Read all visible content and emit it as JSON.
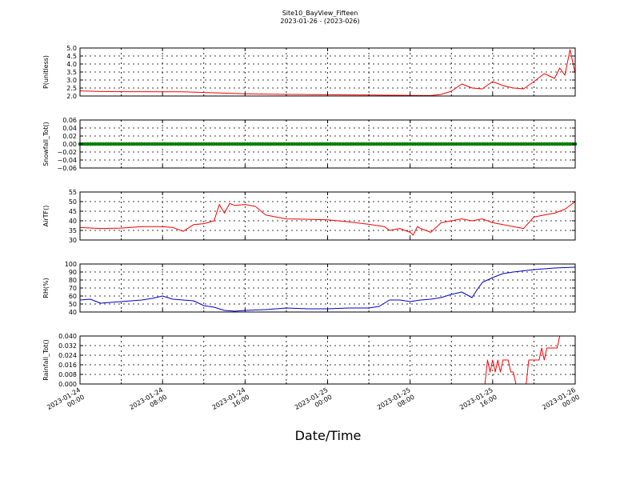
{
  "title": "Site10_BayView_Fifteen",
  "subtitle": "2023-01-26 - (2023-026)",
  "xlabel": "Date/Time",
  "x_tick_labels": [
    [
      "2023-01-24",
      "00:00"
    ],
    [
      "2023-01-24",
      "08:00"
    ],
    [
      "2023-01-24",
      "16:00"
    ],
    [
      "2023-01-25",
      "00:00"
    ],
    [
      "2023-01-25",
      "08:00"
    ],
    [
      "2023-01-25",
      "16:00"
    ],
    [
      "2023-01-26",
      "00:00"
    ]
  ],
  "chart_data": [
    {
      "type": "line",
      "ylabel": "P(unitless)",
      "color": "#ff0000",
      "ylim": [
        2.0,
        5.0
      ],
      "yticks": [
        2.0,
        2.5,
        3.0,
        3.5,
        4.0,
        4.5,
        5.0
      ],
      "ytick_labels": [
        "2.0",
        "2.5",
        "3.0",
        "3.5",
        "4.0",
        "4.5",
        "5.0"
      ],
      "x_hours": [
        0,
        2,
        4,
        6,
        8,
        10,
        12,
        14,
        16,
        18,
        20,
        22,
        24,
        26,
        28,
        30,
        32,
        34,
        35,
        36,
        37,
        38,
        39,
        40,
        41,
        42,
        43,
        44,
        45,
        46,
        46.5,
        47,
        47.5,
        48
      ],
      "values": [
        2.32,
        2.28,
        2.27,
        2.27,
        2.26,
        2.26,
        2.22,
        2.18,
        2.14,
        2.12,
        2.1,
        2.09,
        2.08,
        2.07,
        2.06,
        2.05,
        2.04,
        2.03,
        2.1,
        2.3,
        2.75,
        2.5,
        2.45,
        2.9,
        2.65,
        2.5,
        2.45,
        2.9,
        3.4,
        3.1,
        3.75,
        3.3,
        4.9,
        3.4
      ]
    },
    {
      "type": "scatter",
      "ylabel": "Snowfall_Tot()",
      "color": "#008000",
      "ylim": [
        -0.06,
        0.06
      ],
      "yticks": [
        -0.06,
        -0.04,
        -0.02,
        0.0,
        0.02,
        0.04,
        0.06
      ],
      "ytick_labels": [
        "−0.06",
        "−0.04",
        "−0.02",
        "0.00",
        "0.02",
        "0.04",
        "0.06"
      ],
      "x_start_hours": 0,
      "x_step_hours": 0.25,
      "count": 193,
      "constant_value": 0.0
    },
    {
      "type": "line",
      "ylabel": "AirTF()",
      "color": "#ff0000",
      "ylim": [
        30,
        55
      ],
      "yticks": [
        30,
        35,
        40,
        45,
        50,
        55
      ],
      "ytick_labels": [
        "30",
        "35",
        "40",
        "45",
        "50",
        "55"
      ],
      "x_hours": [
        0,
        2,
        4,
        6,
        8,
        9,
        10,
        11,
        12,
        13,
        13.5,
        14,
        14.5,
        15,
        16,
        17,
        18,
        20,
        22,
        24,
        26,
        28,
        29.5,
        30,
        31,
        32,
        32.3,
        32.7,
        33,
        34,
        35,
        36,
        37,
        38,
        39,
        40,
        41,
        42,
        43,
        44,
        45,
        46,
        47,
        48
      ],
      "values": [
        36.5,
        36,
        36.2,
        37,
        37,
        36.5,
        34.5,
        38,
        38.5,
        40,
        48.5,
        44,
        49,
        48,
        48.5,
        47.5,
        43,
        41,
        40.8,
        40.5,
        39.5,
        38.2,
        37,
        35,
        36,
        34,
        32.5,
        37,
        36,
        34,
        39,
        40,
        41,
        40,
        41,
        39,
        38,
        37,
        36,
        42,
        43,
        44,
        46,
        50
      ]
    },
    {
      "type": "line",
      "ylabel": "RH(%)",
      "color": "#0000cc",
      "ylim": [
        40,
        100
      ],
      "yticks": [
        40,
        50,
        60,
        70,
        80,
        90,
        100
      ],
      "ytick_labels": [
        "40",
        "50",
        "60",
        "70",
        "80",
        "90",
        "100"
      ],
      "x_hours": [
        0,
        1,
        2,
        4,
        6,
        7,
        8,
        9,
        10,
        11,
        12,
        13,
        14,
        15,
        16,
        18,
        20,
        22,
        24,
        26,
        28,
        29,
        30,
        31,
        32,
        33,
        34,
        35,
        36,
        37,
        38,
        38.5,
        39,
        40,
        41,
        42,
        44,
        46,
        48
      ],
      "values": [
        55,
        56,
        51,
        53,
        55,
        57,
        60,
        56,
        55,
        54,
        48,
        46,
        42,
        41,
        42,
        43,
        45,
        44,
        44,
        45,
        45,
        47,
        55,
        55,
        53,
        55,
        56,
        58,
        62,
        65,
        58,
        68,
        77,
        83,
        88,
        90,
        93,
        95,
        96
      ]
    },
    {
      "type": "line",
      "ylabel": "Rainfall_Tot()",
      "color": "#ff0000",
      "ylim": [
        0,
        0.04
      ],
      "yticks": [
        0,
        0.008,
        0.016,
        0.024,
        0.032,
        0.04
      ],
      "ytick_labels": [
        "0.000",
        "0.008",
        "0.016",
        "0.024",
        "0.032",
        "0.040"
      ],
      "x_hours": [
        0,
        39.25,
        39.5,
        39.75,
        40,
        40.25,
        40.5,
        40.75,
        41,
        41.25,
        41.5,
        41.75,
        42,
        42.25,
        42.5,
        42.75,
        43,
        43.25,
        43.5,
        43.75,
        44,
        44.25,
        44.5,
        44.75,
        45,
        45.25,
        45.5,
        45.75,
        46,
        46.25,
        46.5,
        46.75,
        47,
        47.25,
        47.5,
        47.75,
        48
      ],
      "values": [
        0,
        0,
        0.02,
        0.01,
        0.02,
        0.01,
        0.02,
        0.01,
        0.02,
        0.02,
        0.02,
        0.01,
        0.01,
        0.0,
        0.0,
        0.0,
        0.0,
        0.0,
        0.02,
        0.02,
        0.02,
        0.02,
        0.02,
        0.03,
        0.02,
        0.03,
        0.03,
        0.03,
        0.03,
        0.03,
        0.04,
        0.04,
        0.04,
        0.04,
        0.04,
        0.04,
        0.04
      ]
    }
  ]
}
